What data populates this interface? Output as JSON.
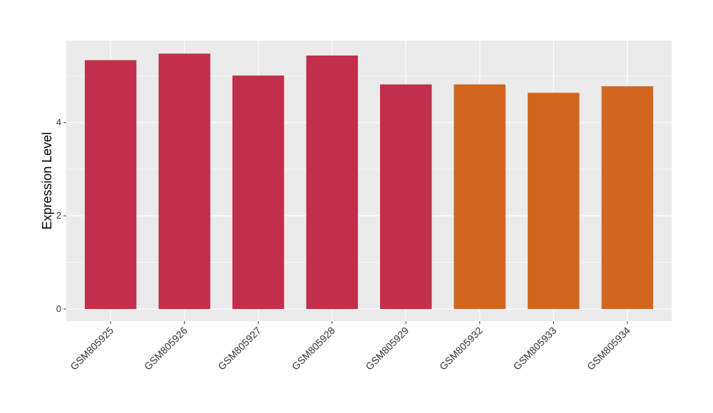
{
  "chart_data": {
    "type": "bar",
    "y_label": "Expression Level",
    "categories": [
      "GSM805925",
      "GSM805926",
      "GSM805927",
      "GSM805928",
      "GSM805929",
      "GSM805932",
      "GSM805933",
      "GSM805934"
    ],
    "values": [
      5.34,
      5.48,
      5.01,
      5.44,
      4.82,
      4.82,
      4.64,
      4.78
    ],
    "colors": [
      "#c0304a",
      "#c0304a",
      "#c0304a",
      "#c0304a",
      "#c0304a",
      "#d2661f",
      "#d2661f",
      "#d2661f"
    ],
    "ylim": [
      -0.26,
      5.76
    ],
    "yticks": [
      0,
      2,
      4
    ],
    "minor_yticks": [
      1,
      3,
      5
    ],
    "grid": true
  }
}
